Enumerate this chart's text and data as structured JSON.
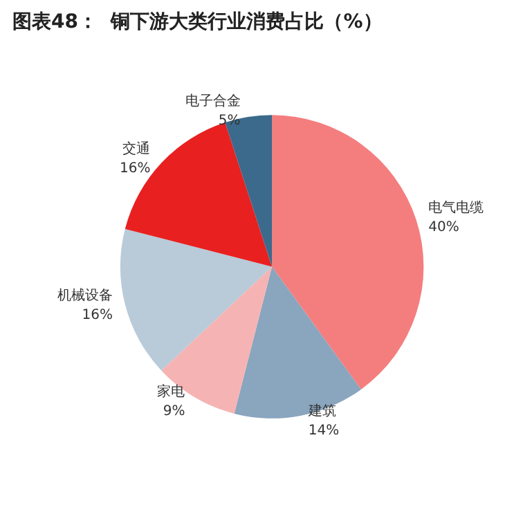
{
  "chart_data": {
    "type": "pie",
    "title": "图表48：  铜下游大类行业消费占比（%）",
    "categories": [
      "电气电缆",
      "建筑",
      "家电",
      "机械设备",
      "交通",
      "电子合金"
    ],
    "values": [
      40,
      14,
      9,
      16,
      16,
      5
    ],
    "value_labels": [
      "40%",
      "14%",
      "9%",
      "16%",
      "16%",
      "5%"
    ],
    "colors": [
      "#f47e7e",
      "#8aa5be",
      "#f6b3b3",
      "#b9cad9",
      "#e82020",
      "#3b6a8c"
    ],
    "legend": false
  }
}
